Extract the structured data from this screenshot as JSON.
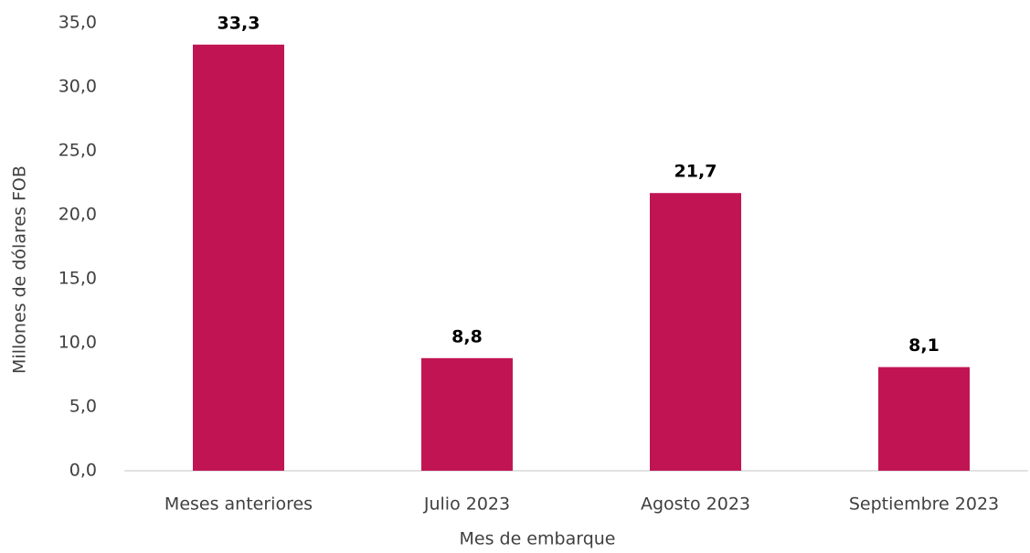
{
  "chart_data": {
    "type": "bar",
    "categories": [
      "Meses anteriores",
      "Julio 2023",
      "Agosto 2023",
      "Septiembre 2023"
    ],
    "values": [
      33.3,
      8.8,
      21.7,
      8.1
    ],
    "value_labels": [
      "33,3",
      "8,8",
      "21,7",
      "8,1"
    ],
    "color": "#c11553",
    "ylim": [
      0,
      35
    ],
    "yticks": [
      {
        "value": 0,
        "label": "0,0"
      },
      {
        "value": 5,
        "label": "5,0"
      },
      {
        "value": 10,
        "label": "10,0"
      },
      {
        "value": 15,
        "label": "15,0"
      },
      {
        "value": 20,
        "label": "20,0"
      },
      {
        "value": 25,
        "label": "25,0"
      },
      {
        "value": 30,
        "label": "30,0"
      },
      {
        "value": 35,
        "label": "35,0"
      }
    ],
    "y_label": "Millones de dólares FOB",
    "x_label": "Mes de embarque",
    "grid": false
  }
}
